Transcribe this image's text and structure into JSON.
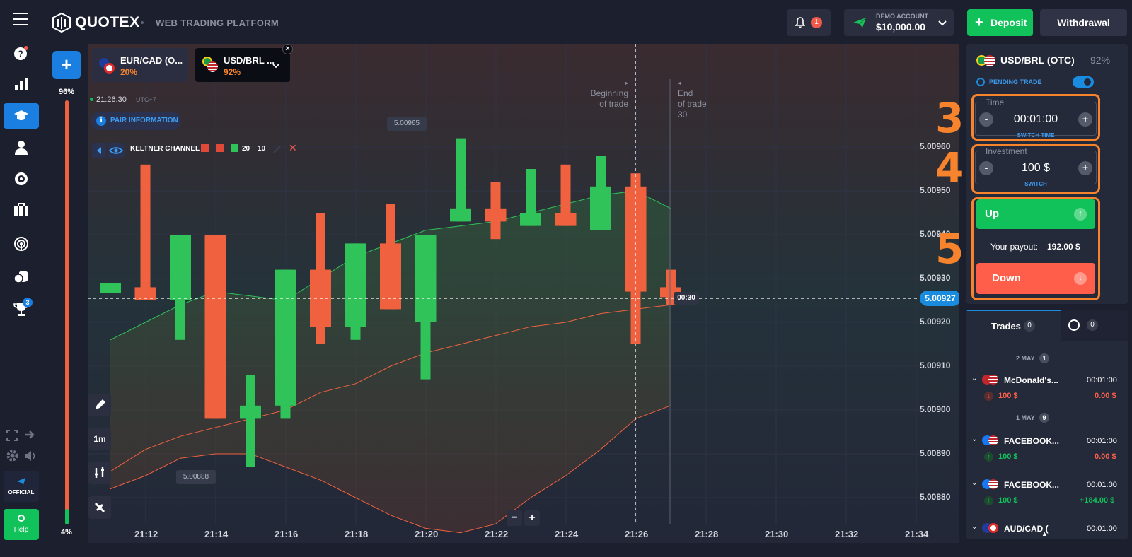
{
  "brand": {
    "name": "QUOTEX",
    "subtitle": "WEB TRADING PLATFORM"
  },
  "header": {
    "notifications_count": "1",
    "account_label": "DEMO ACCOUNT",
    "balance": "$10,000.00",
    "deposit_label": "Deposit",
    "withdrawal_label": "Withdrawal"
  },
  "sidebar": {
    "trophy_badge": "3",
    "official_label": "OFFICIAL",
    "help_label": "Help",
    "percent_top": "96%",
    "percent_bottom": "4%"
  },
  "asset_tabs": [
    {
      "name": "EUR/CAD (O...",
      "payout": "20%"
    },
    {
      "name": "USD/BRL ...",
      "payout": "92%"
    }
  ],
  "chart_info": {
    "time": "21:26:30",
    "timezone": "UTC+7",
    "pair_info_label": "PAIR INFORMATION",
    "indicator_label": "KELTNER CHANNEL",
    "indicator_p1": "20",
    "indicator_p2": "10",
    "beginning_label_1": "Beginning",
    "beginning_label_2": "of trade",
    "end_label_1": "End",
    "end_label_2": "of trade",
    "end_label_3": "30",
    "high_marker": "5.00965",
    "low_marker": "5.00888",
    "timer": "00:30",
    "current_price": "5.00927",
    "timeframe": "1m"
  },
  "chart_data": {
    "type": "candlestick",
    "y_ticks": [
      "5.00960",
      "5.00950",
      "5.00940",
      "5.00930",
      "5.00920",
      "5.00910",
      "5.00900",
      "5.00890",
      "5.00880"
    ],
    "x_ticks": [
      "21:12",
      "21:14",
      "21:16",
      "21:18",
      "21:20",
      "21:22",
      "21:24",
      "21:26",
      "21:28",
      "21:30",
      "21:32",
      "21:34"
    ],
    "ylim": [
      5.00873,
      5.00978
    ],
    "candles": [
      {
        "t": 0,
        "open": 5.00928,
        "close": 5.00929,
        "high": 5.00929,
        "low": 5.00928
      },
      {
        "t": 1,
        "open": 5.00928,
        "close": 5.00925,
        "high": 5.00956,
        "low": 5.00925
      },
      {
        "t": 2,
        "open": 5.00925,
        "close": 5.0094,
        "high": 5.0094,
        "low": 5.00916
      },
      {
        "t": 3,
        "open": 5.0094,
        "close": 5.00898,
        "high": 5.0094,
        "low": 5.00898
      },
      {
        "t": 4,
        "open": 5.00898,
        "close": 5.00901,
        "high": 5.00908,
        "low": 5.00887
      },
      {
        "t": 5,
        "open": 5.00901,
        "close": 5.00932,
        "high": 5.00932,
        "low": 5.00898
      },
      {
        "t": 6,
        "open": 5.00932,
        "close": 5.00919,
        "high": 5.00945,
        "low": 5.00915
      },
      {
        "t": 7,
        "open": 5.00919,
        "close": 5.00938,
        "high": 5.00938,
        "low": 5.00916
      },
      {
        "t": 8,
        "open": 5.00938,
        "close": 5.00923,
        "high": 5.00947,
        "low": 5.00923
      },
      {
        "t": 9,
        "open": 5.0092,
        "close": 5.0094,
        "high": 5.0094,
        "low": 5.00907
      },
      {
        "t": 10,
        "open": 5.00943,
        "close": 5.00946,
        "high": 5.00962,
        "low": 5.00943
      },
      {
        "t": 11,
        "open": 5.00946,
        "close": 5.00943,
        "high": 5.00952,
        "low": 5.00939
      },
      {
        "t": 12,
        "open": 5.00942,
        "close": 5.00945,
        "high": 5.00955,
        "low": 5.00942
      },
      {
        "t": 13,
        "open": 5.00945,
        "close": 5.00942,
        "high": 5.00956,
        "low": 5.00942
      },
      {
        "t": 14,
        "open": 5.00941,
        "close": 5.00951,
        "high": 5.00958,
        "low": 5.00941
      },
      {
        "t": 15,
        "open": 5.00951,
        "close": 5.00927,
        "high": 5.00954,
        "low": 5.00915
      },
      {
        "t": 16,
        "open": 5.00928,
        "close": 5.00926,
        "high": 5.00932,
        "low": 5.00924
      }
    ],
    "series": [
      {
        "name": "upper",
        "color": "#2fc35a",
        "values": [
          5.00916,
          5.0092,
          5.00924,
          5.00927,
          5.00926,
          5.00925,
          5.0093,
          5.00935,
          5.00938,
          5.00941,
          5.00942,
          5.00943,
          5.00945,
          5.00947,
          5.00949,
          5.0095,
          5.00946
        ]
      },
      {
        "name": "middle",
        "color": "#f0623f",
        "values": [
          5.00886,
          5.00891,
          5.00894,
          5.00896,
          5.00898,
          5.009,
          5.00904,
          5.00906,
          5.0091,
          5.00913,
          5.00915,
          5.00917,
          5.00919,
          5.0092,
          5.00922,
          5.00923,
          5.00924
        ]
      },
      {
        "name": "lower",
        "color": "#f0623f",
        "values": [
          5.00882,
          5.00885,
          5.00889,
          5.0089,
          5.0089,
          5.00887,
          5.00884,
          5.0088,
          5.00876,
          5.00873,
          5.00872,
          5.00874,
          5.0088,
          5.00885,
          5.00891,
          5.00898,
          5.00901
        ]
      }
    ]
  },
  "trade_panel": {
    "asset": "USD/BRL (OTC)",
    "payout": "92%",
    "pending_label": "PENDING TRADE",
    "time_label": "Time",
    "time_value": "00:01:00",
    "switch_time": "SWITCH TIME",
    "investment_label": "Investment",
    "investment_value": "100 $",
    "switch": "SWITCH",
    "up_label": "Up",
    "payout_label": "Your payout:",
    "payout_value": "192.00 $",
    "down_label": "Down",
    "step3": "3",
    "step4": "4",
    "step5": "5"
  },
  "trades": {
    "tab_label": "Trades",
    "tab_count": "0",
    "history_count": "0",
    "groups": [
      {
        "date": "2 MAY",
        "count": "1"
      },
      {
        "date": "1 MAY",
        "count": "9"
      }
    ],
    "rows": [
      {
        "name": "McDonald's...",
        "time": "00:01:00",
        "amount": "100 $",
        "result": "0.00 $",
        "dir": "down"
      },
      {
        "name": "FACEBOOK...",
        "time": "00:01:00",
        "amount": "100 $",
        "result": "0.00 $",
        "dir": "up"
      },
      {
        "name": "FACEBOOK...",
        "time": "00:01:00",
        "amount": "100 $",
        "result": "+184.00 $",
        "dir": "up"
      },
      {
        "name": "AUD/CAD (",
        "time": "00:01:00"
      }
    ]
  },
  "colors": {
    "accent": "#1a7fe0",
    "green": "#11c15a",
    "red": "#ff5f4a",
    "orange": "#f7832c",
    "bg": "#1c1f2d"
  }
}
